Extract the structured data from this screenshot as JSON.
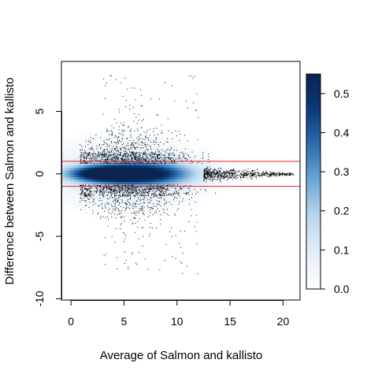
{
  "chart_data": {
    "type": "scatter",
    "plot_style": "smoothed density scatter with outlier points",
    "xlabel": "Average of Salmon and kallisto",
    "ylabel": "Difference between Salmon and kallisto",
    "x_ticks": [
      0,
      5,
      10,
      15,
      20
    ],
    "y_ticks": [
      -10,
      -5,
      0,
      5
    ],
    "xlim": [
      -0.9,
      21.6
    ],
    "ylim": [
      -10.1,
      9.0
    ],
    "reference_lines": [
      {
        "y": 1,
        "color": "#e0262a"
      },
      {
        "y": -1,
        "color": "#e0262a"
      }
    ],
    "density_core": {
      "x_range": [
        -0.5,
        13.5
      ],
      "y_range": [
        -1.0,
        1.0
      ],
      "peak_x": 3.0
    },
    "tail_band": {
      "x_range": [
        13,
        21
      ],
      "y_range": [
        -0.5,
        0.5
      ]
    },
    "legend": {
      "placement": "right",
      "ticks": [
        0.0,
        0.1,
        0.2,
        0.3,
        0.4,
        0.5
      ],
      "range": [
        0,
        0.55
      ],
      "colors": [
        "#ffffff",
        "#e3eef8",
        "#bcd7ed",
        "#6fa9d6",
        "#2d6fb0",
        "#0d3a78",
        "#08244f"
      ]
    },
    "grid": false
  }
}
